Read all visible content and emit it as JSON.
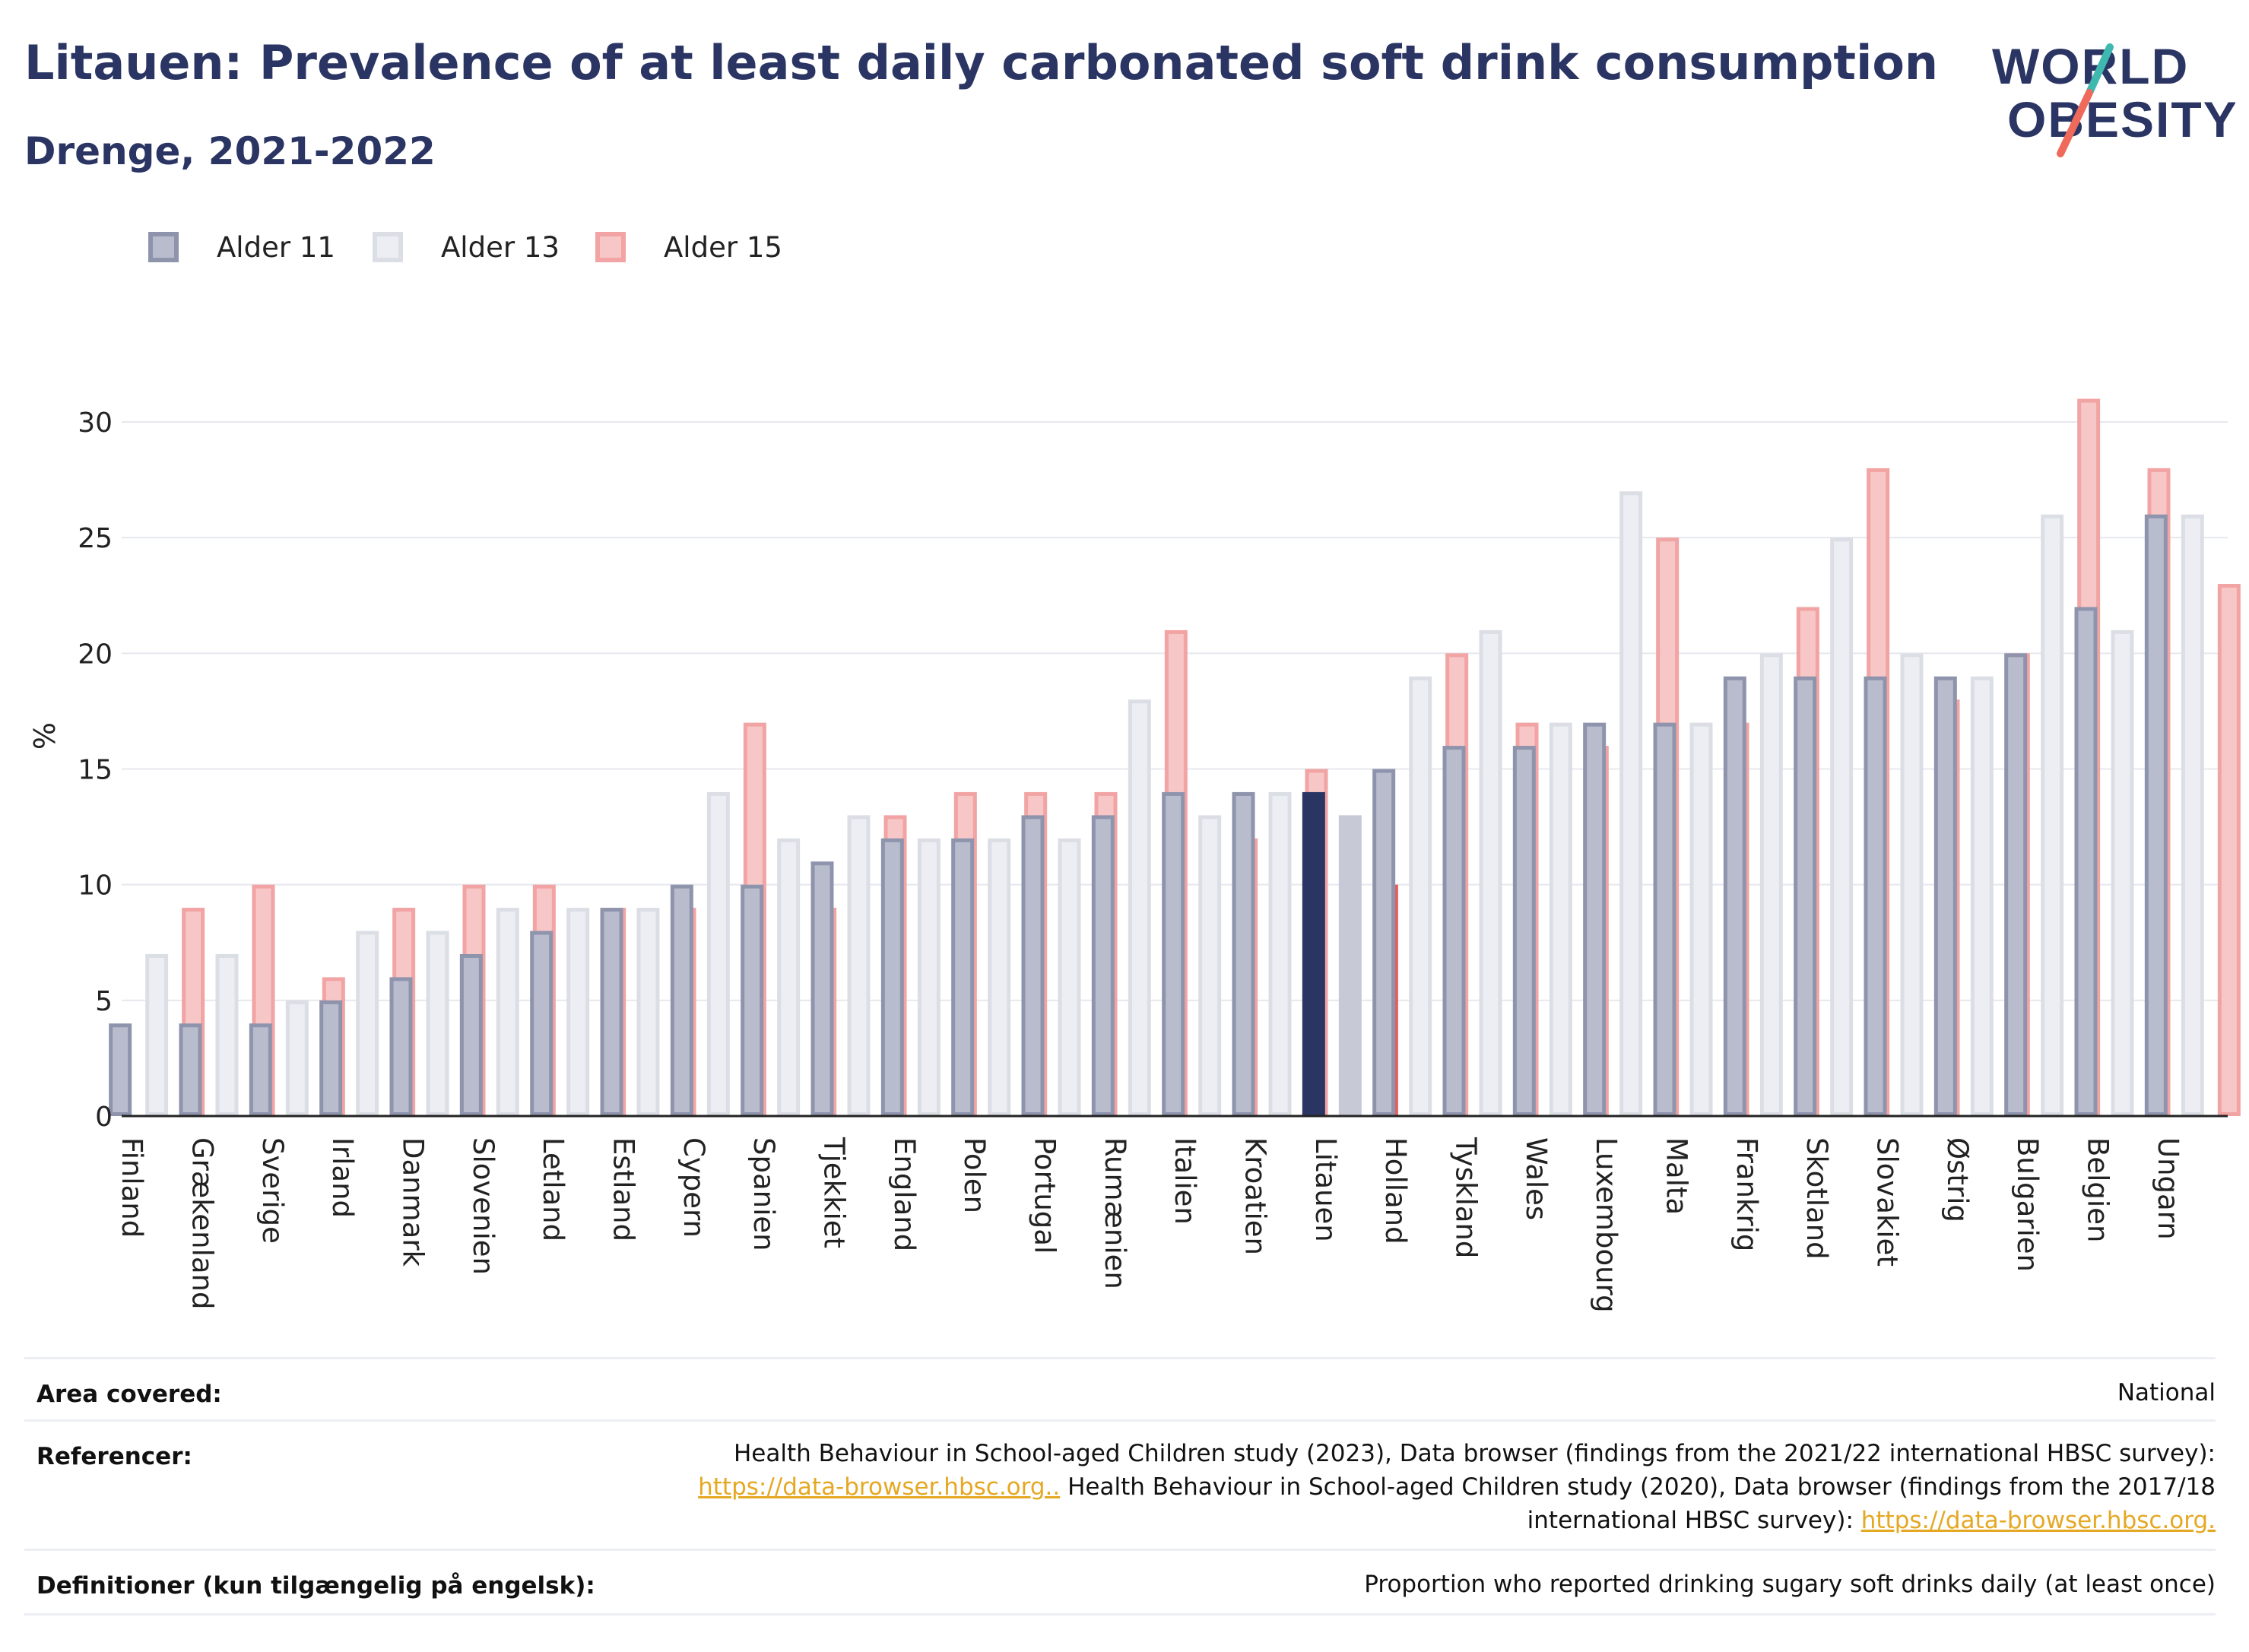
{
  "header": {
    "title": "Litauen: Prevalence of at least daily carbonated soft drink consumption",
    "subtitle": "Drenge, 2021-2022"
  },
  "logo": {
    "line1": "WORLD",
    "line2": "OBESITY"
  },
  "colors": {
    "age11": "#2b3563",
    "age13": "#c7c9d6",
    "age15": "#e85a5a",
    "age11_light": "#b9bccd",
    "age13_light": "#eceef3",
    "age15_light": "#f7c7c7",
    "age11_border": "#8f94ad",
    "age13_border": "#dcdee6",
    "age15_border": "#f2a3a3",
    "grid": "#e6e8ef",
    "axis": "#222222"
  },
  "chart_data": {
    "type": "bar",
    "highlight": "Litauen",
    "ylabel": "%",
    "ylim": [
      0,
      32
    ],
    "yticks": [
      0,
      5,
      10,
      15,
      20,
      25,
      30
    ],
    "grid": true,
    "legend_position": "top-left",
    "categories": [
      "Finland",
      "Grækenland",
      "Sverige",
      "Irland",
      "Danmark",
      "Slovenien",
      "Letland",
      "Estland",
      "Cypern",
      "Spanien",
      "Tjekkiet",
      "England",
      "Polen",
      "Portugal",
      "Rumænien",
      "Italien",
      "Kroatien",
      "Litauen",
      "Holland",
      "Tyskland",
      "Wales",
      "Luxembourg",
      "Malta",
      "Frankrig",
      "Skotland",
      "Slovakiet",
      "Østrig",
      "Bulgarien",
      "Belgien",
      "Ungarn"
    ],
    "series": [
      {
        "name": "Alder 11",
        "values": [
          4,
          4,
          4,
          5,
          6,
          7,
          8,
          9,
          10,
          10,
          11,
          12,
          12,
          13,
          13,
          14,
          14,
          14,
          15,
          16,
          16,
          17,
          17,
          19,
          19,
          19,
          19,
          20,
          22,
          26
        ]
      },
      {
        "name": "Alder 13",
        "values": [
          7,
          7,
          5,
          8,
          8,
          9,
          9,
          9,
          14,
          12,
          13,
          12,
          12,
          12,
          18,
          13,
          14,
          13,
          19,
          21,
          17,
          27,
          17,
          20,
          25,
          20,
          19,
          26,
          21,
          26
        ]
      },
      {
        "name": "Alder 15",
        "values": [
          9,
          10,
          6,
          9,
          10,
          10,
          9,
          9,
          17,
          9,
          13,
          14,
          14,
          14,
          21,
          12,
          15,
          10,
          20,
          17,
          16,
          25,
          17,
          22,
          28,
          18,
          20,
          31,
          28,
          23
        ]
      }
    ]
  },
  "footer": {
    "area_label": "Area covered:",
    "area_value": "National",
    "ref_label": "Referencer:",
    "ref_line1": "Health Behaviour in School-aged Children study (2023), Data browser (findings from the 2021/22 international HBSC survey):",
    "ref_link1": "https://data-browser.hbsc.org..",
    "ref_line2": " Health Behaviour in School-aged Children study (2020), Data browser (findings from the 2017/18",
    "ref_line3": "international HBSC survey): ",
    "ref_link2": "https://data-browser.hbsc.org.",
    "def_label": "Definitioner (kun tilgængelig på engelsk):",
    "def_value": "Proportion who reported drinking sugary soft drinks daily (at least once)"
  }
}
